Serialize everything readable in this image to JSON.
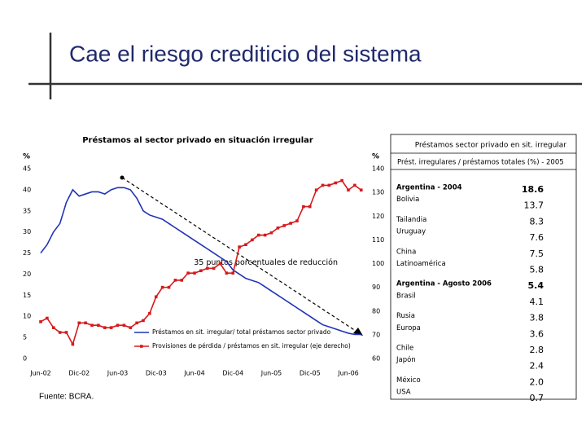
{
  "slide_title": "Cae el riesgo crediticio del sistema",
  "chart_data": {
    "type": "line",
    "title": "Préstamos al sector privado en situación irregular",
    "y_label": "%",
    "y2_label": "%",
    "categories": [
      "Jun-02",
      null,
      null,
      null,
      null,
      null,
      "Dic-02",
      null,
      null,
      null,
      null,
      null,
      "Jun-03",
      null,
      null,
      null,
      null,
      null,
      "Dic-03",
      null,
      null,
      null,
      null,
      null,
      "Jun-04",
      null,
      null,
      null,
      null,
      null,
      "Dic-04",
      null,
      null,
      null,
      null,
      null,
      "Jun-05",
      null,
      null,
      null,
      null,
      null,
      "Dic-05",
      null,
      null,
      null,
      null,
      null,
      "Jun-06",
      null,
      null
    ],
    "series": [
      {
        "name": "Préstamos en sit. irregular/ total préstamos sector privado",
        "color": "#1f33b8",
        "axis": "y",
        "values": [
          25,
          27,
          30,
          32,
          37,
          40,
          38.5,
          39,
          39.5,
          39.5,
          39,
          40,
          40.5,
          40.5,
          40,
          38,
          35,
          34,
          33.5,
          33,
          32,
          31,
          30,
          29,
          28,
          27,
          26,
          25,
          24,
          23,
          21,
          20,
          19,
          18.5,
          18,
          17,
          16,
          15,
          14,
          13,
          12,
          11,
          10,
          9,
          8,
          7.5,
          7,
          6.5,
          6,
          5.7,
          5.7
        ]
      },
      {
        "name": "Provisiones de pérdida / préstamos en sit. irregular (eje derecho)",
        "color": "#d7191c",
        "axis": "y2",
        "values": [
          75.5,
          77,
          73,
          71,
          71,
          66,
          75,
          75,
          74,
          74,
          73,
          73,
          74,
          74,
          73,
          75,
          76,
          79,
          86,
          90,
          90,
          93,
          93,
          96,
          96,
          97,
          98,
          98,
          100,
          96,
          96,
          107,
          108,
          110,
          112,
          112,
          113,
          115,
          116,
          117,
          118,
          124,
          124,
          131,
          133,
          133,
          134,
          135,
          131,
          133,
          131
        ]
      }
    ],
    "ylim": [
      0,
      45
    ],
    "yticks": [
      0,
      5,
      10,
      15,
      20,
      25,
      30,
      35,
      40,
      45
    ],
    "y2lim": [
      60,
      140
    ],
    "y2ticks": [
      60,
      70,
      80,
      90,
      100,
      110,
      120,
      130,
      140
    ],
    "annotation": "35 puntos porcentuales de reducción",
    "source": "Fuente: BCRA."
  },
  "table": {
    "title": "Préstamos sector privado en sit. irregular",
    "subtitle": "Prést. irregulares / préstamos totales (%) - 2005",
    "rows": [
      [
        "Argentina - 2004",
        "18.6"
      ],
      [
        "Bolivia",
        "13.7"
      ],
      [
        "Tailandia",
        "8.3"
      ],
      [
        "Uruguay",
        "7.6"
      ],
      [
        "China",
        "7.5"
      ],
      [
        "Latinoamérica",
        "5.8"
      ],
      [
        "Argentina - Agosto 2006",
        "5.4"
      ],
      [
        "Brasil",
        "4.1"
      ],
      [
        "Rusia",
        "3.8"
      ],
      [
        "Europa",
        "3.6"
      ],
      [
        "Chile",
        "2.8"
      ],
      [
        "Japón",
        "2.4"
      ],
      [
        "México",
        "2.0"
      ],
      [
        "USA",
        "0.7"
      ]
    ],
    "bold_rows": [
      0,
      6
    ]
  }
}
